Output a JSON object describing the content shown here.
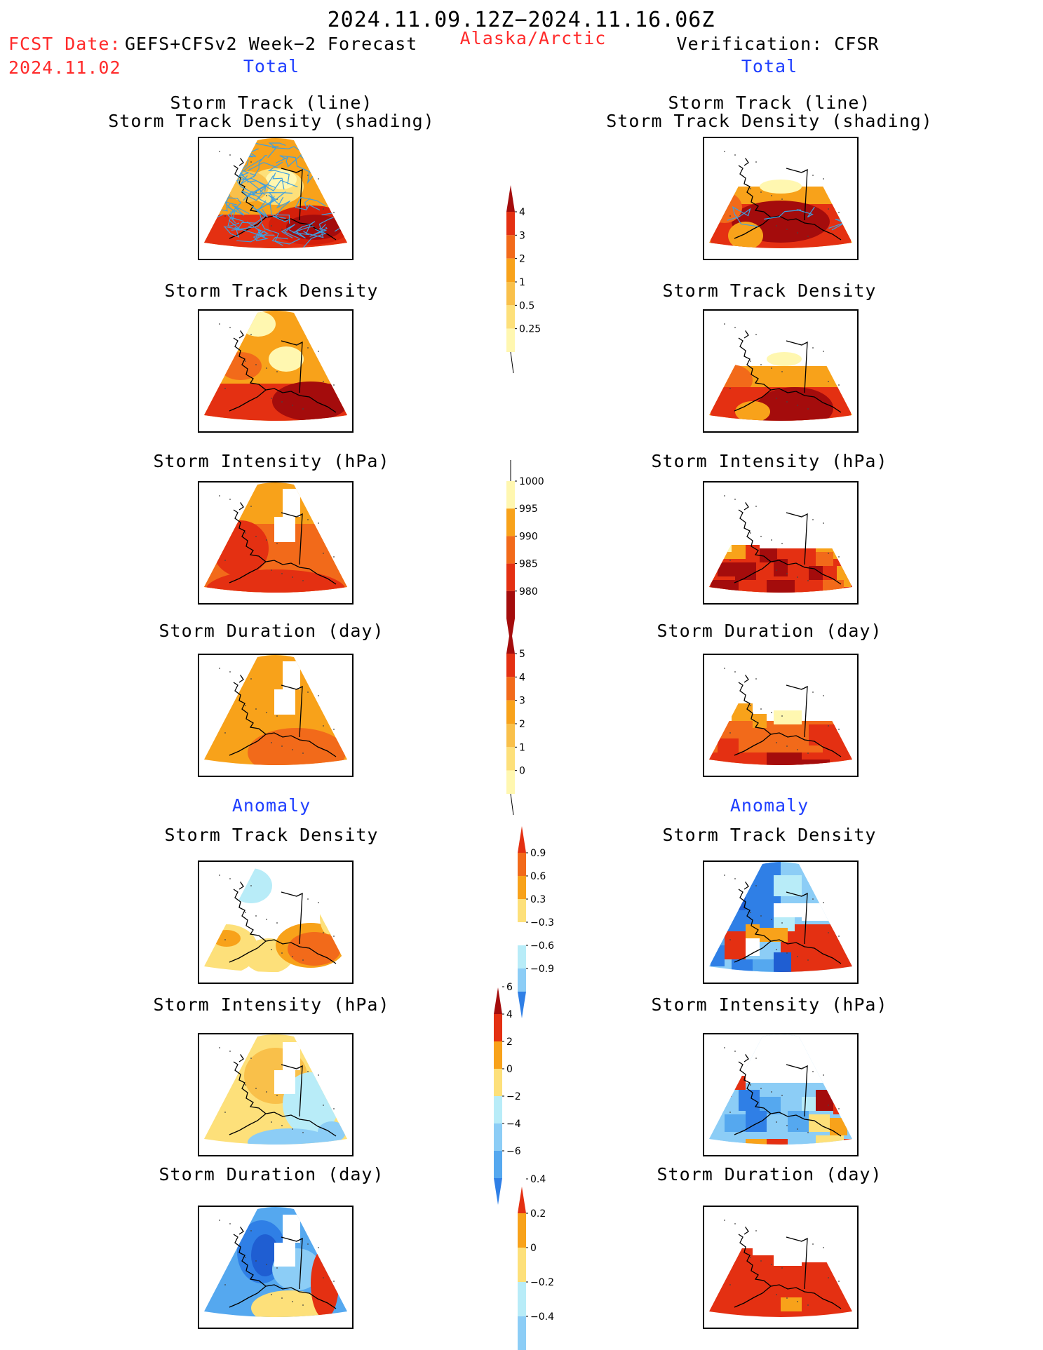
{
  "header": {
    "period": "2024.11.09.12Z−2024.11.16.06Z",
    "fcst_label": "FCST Date:",
    "fcst_model": "GEFS+CFSv2 Week−2 Forecast",
    "fcst_date": "2024.11.02",
    "region": "Alaska/Arctic",
    "verification": "Verification: CFSR",
    "total_left": "Total",
    "total_right": "Total",
    "anomaly_left": "Anomaly",
    "anomaly_right": "Anomaly"
  },
  "panel_titles": {
    "track_line": "Storm Track (line)",
    "track_shading": "Storm Track Density (shading)",
    "track_density": "Storm Track Density",
    "intensity": "Storm Intensity (hPa)",
    "duration": "Storm Duration (day)"
  },
  "colorbars": {
    "density_total": [
      "0.25",
      "0.5",
      "1",
      "2",
      "3",
      "4"
    ],
    "intensity_total": [
      "980",
      "985",
      "990",
      "995",
      "1000"
    ],
    "duration_total": [
      "0",
      "1",
      "2",
      "3",
      "4",
      "5"
    ],
    "density_anom": [
      "−0.9",
      "−0.6",
      "−0.3",
      "0.3",
      "0.6",
      "0.9"
    ],
    "intensity_anom": [
      "−6",
      "−4",
      "−2",
      "0",
      "2",
      "4",
      "6"
    ],
    "duration_anom": [
      "−0.4",
      "−0.2",
      "0",
      "0.2",
      "0.4"
    ]
  },
  "colors": {
    "pale_yellow": "#fff7b0",
    "light_yellow": "#fde07a",
    "light_orange": "#f9c04a",
    "orange": "#f8a21a",
    "dark_orange": "#f26a1a",
    "red": "#e43012",
    "red_deep": "#d41f0a",
    "dark_red": "#a40c0c",
    "maroon": "#7a0808",
    "pale_blue": "#b8ecf8",
    "light_blue": "#8ccdf6",
    "mid_blue": "#55a8ef",
    "blue": "#2f7fe6",
    "deep_blue": "#1f5ed2",
    "track_blue": "#3f9fe0"
  }
}
